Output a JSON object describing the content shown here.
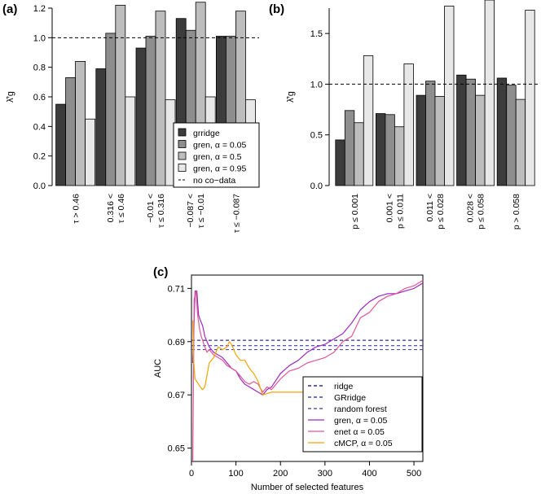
{
  "chart_data": [
    {
      "panel": "(a)",
      "type": "bar",
      "ylabel": "λ̂′g",
      "ylim": [
        0,
        1.2
      ],
      "yticks": [
        "0.0",
        "0.2",
        "0.4",
        "0.6",
        "0.8",
        "1.0",
        "1.2"
      ],
      "reference_line": 1.0,
      "categories": [
        [
          "τ > 0.46"
        ],
        [
          "0.316 <",
          "τ ≤ 0.46"
        ],
        [
          "−0.01 <",
          "τ ≤ 0.316"
        ],
        [
          "−0.087 <",
          "τ ≤ −0.01"
        ],
        [
          "τ ≤ −0.087"
        ]
      ],
      "series": [
        {
          "name": "grridge",
          "color": "#3c3c3c",
          "values": [
            0.55,
            0.79,
            0.93,
            1.13,
            1.01
          ]
        },
        {
          "name": "gren, α = 0.05",
          "color": "#8e8e8e",
          "values": [
            0.73,
            1.03,
            1.01,
            1.05,
            1.01
          ]
        },
        {
          "name": "gren, α = 0.5",
          "color": "#bdbdbd",
          "values": [
            0.84,
            1.22,
            1.18,
            1.24,
            1.18
          ]
        },
        {
          "name": "gren, α = 0.95",
          "color": "#e8e8e8",
          "values": [
            0.45,
            0.6,
            0.58,
            0.6,
            0.58
          ]
        }
      ],
      "legend": [
        {
          "label": "grridge",
          "kind": "box",
          "color": "#3c3c3c"
        },
        {
          "label": "gren,  α = 0.05",
          "kind": "box",
          "color": "#8e8e8e"
        },
        {
          "label": "gren,  α = 0.5",
          "kind": "box",
          "color": "#bdbdbd"
        },
        {
          "label": "gren,  α = 0.95",
          "kind": "box",
          "color": "#e8e8e8"
        },
        {
          "label": "no co−data",
          "kind": "dash",
          "color": "#000000"
        }
      ],
      "legend_position": "bottom-right"
    },
    {
      "panel": "(b)",
      "type": "bar",
      "ylabel": "λ̂′g",
      "ylim": [
        0,
        1.75
      ],
      "yticks": [
        "0.0",
        "0.5",
        "1.0",
        "1.5"
      ],
      "reference_line": 1.0,
      "categories": [
        [
          "p ≤ 0.001"
        ],
        [
          "0.001 <",
          "p ≤ 0.011"
        ],
        [
          "0.011 <",
          "p ≤ 0.028"
        ],
        [
          "0.028 <",
          "p ≤ 0.058"
        ],
        [
          "p > 0.058"
        ]
      ],
      "series": [
        {
          "name": "grridge",
          "color": "#3c3c3c",
          "values": [
            0.45,
            0.71,
            0.89,
            1.09,
            1.06
          ]
        },
        {
          "name": "gren, α = 0.05",
          "color": "#8e8e8e",
          "values": [
            0.74,
            0.7,
            1.03,
            1.05,
            0.99
          ]
        },
        {
          "name": "gren, α = 0.5",
          "color": "#bdbdbd",
          "values": [
            0.62,
            0.58,
            0.88,
            0.89,
            0.85
          ]
        },
        {
          "name": "gren, α = 0.95",
          "color": "#e8e8e8",
          "values": [
            1.28,
            1.2,
            1.77,
            1.83,
            1.73
          ]
        }
      ]
    },
    {
      "panel": "(c)",
      "type": "line",
      "xlabel": "Number of selected features",
      "ylabel": "AUC",
      "xlim": [
        0,
        520
      ],
      "ylim": [
        0.645,
        0.715
      ],
      "xticks": [
        "0",
        "100",
        "200",
        "300",
        "400",
        "500"
      ],
      "yticks": [
        "0.65",
        "0.67",
        "0.69",
        "0.71"
      ],
      "reference_lines": [
        {
          "name": "ridge",
          "value": 0.6905,
          "color": "#000080"
        },
        {
          "name": "GRridge",
          "value": 0.6885,
          "color": "#1f1fb0"
        },
        {
          "name": "random forest",
          "value": 0.687,
          "color": "#3a3aa0"
        }
      ],
      "series": [
        {
          "name": "gren, α = 0.05",
          "color": "#9a2bbf",
          "x": [
            3,
            8,
            12,
            16,
            20,
            25,
            30,
            40,
            50,
            60,
            70,
            80,
            90,
            100,
            110,
            120,
            130,
            140,
            150,
            160,
            170,
            180,
            200,
            220,
            240,
            260,
            280,
            300,
            320,
            340,
            360,
            380,
            400,
            420,
            440,
            460,
            480,
            500,
            520
          ],
          "y": [
            0.682,
            0.709,
            0.709,
            0.7,
            0.698,
            0.696,
            0.692,
            0.688,
            0.686,
            0.685,
            0.684,
            0.682,
            0.68,
            0.679,
            0.676,
            0.674,
            0.673,
            0.672,
            0.671,
            0.67,
            0.672,
            0.673,
            0.678,
            0.681,
            0.683,
            0.686,
            0.688,
            0.689,
            0.691,
            0.693,
            0.697,
            0.702,
            0.705,
            0.707,
            0.708,
            0.708,
            0.709,
            0.71,
            0.712
          ]
        },
        {
          "name": "enet α = 0.05",
          "color": "#e0569a",
          "x": [
            3,
            6,
            10,
            14,
            18,
            22,
            26,
            30,
            35,
            40,
            50,
            60,
            70,
            80,
            90,
            100,
            110,
            120,
            130,
            140,
            150,
            160,
            170,
            180,
            200,
            220,
            240,
            260,
            280,
            300,
            320,
            340,
            360,
            380,
            400,
            420,
            440,
            460,
            480,
            500,
            520
          ],
          "y": [
            0.645,
            0.706,
            0.709,
            0.7,
            0.695,
            0.692,
            0.69,
            0.688,
            0.686,
            0.687,
            0.685,
            0.684,
            0.683,
            0.681,
            0.68,
            0.679,
            0.677,
            0.675,
            0.674,
            0.675,
            0.674,
            0.671,
            0.673,
            0.672,
            0.676,
            0.679,
            0.68,
            0.682,
            0.683,
            0.684,
            0.686,
            0.69,
            0.692,
            0.699,
            0.701,
            0.705,
            0.707,
            0.708,
            0.71,
            0.711,
            0.713
          ]
        },
        {
          "name": "cMCP, α = 0.05",
          "color": "#f0a500",
          "x": [
            3,
            5,
            8,
            12,
            16,
            20,
            25,
            30,
            40,
            50,
            55,
            60,
            70,
            80,
            85,
            90,
            95,
            100,
            110,
            120,
            130,
            140,
            150,
            160,
            180,
            200,
            220,
            240,
            260,
            280,
            300
          ],
          "y": [
            0.698,
            0.683,
            0.676,
            0.675,
            0.674,
            0.673,
            0.672,
            0.673,
            0.682,
            0.684,
            0.686,
            0.688,
            0.687,
            0.688,
            0.69,
            0.689,
            0.687,
            0.685,
            0.683,
            0.683,
            0.68,
            0.678,
            0.675,
            0.67,
            0.671,
            0.671,
            0.671,
            0.671,
            0.671,
            0.672,
            0.672
          ]
        }
      ],
      "legend": [
        {
          "label": "ridge",
          "kind": "dash",
          "color": "#000080"
        },
        {
          "label": "GRridge",
          "kind": "dash",
          "color": "#1f1fb0"
        },
        {
          "label": "random forest",
          "kind": "dash",
          "color": "#3a3aa0"
        },
        {
          "label": "gren, α = 0.05",
          "kind": "line",
          "color": "#9a2bbf"
        },
        {
          "label": "enet α = 0.05",
          "kind": "line",
          "color": "#e0569a"
        },
        {
          "label": "cMCP, α = 0.05",
          "kind": "line",
          "color": "#f0a500"
        }
      ],
      "legend_position": "bottom-right"
    }
  ]
}
